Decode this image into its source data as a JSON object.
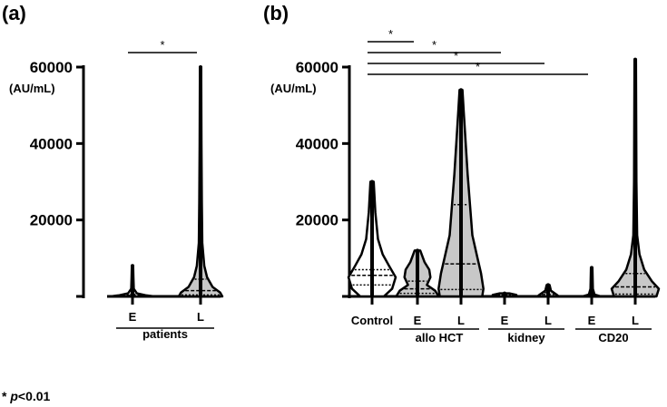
{
  "footnote": {
    "star": "*",
    "p": "p",
    "rest": "<0.01"
  },
  "chart_data": [
    {
      "type": "violin",
      "panel_label": "(a)",
      "ylabel": "(AU/mL)",
      "ylim": [
        0,
        60000
      ],
      "y_ticks": [
        0,
        20000,
        40000,
        60000
      ],
      "y_tick_labels": [
        "",
        "20000",
        "40000",
        "60000"
      ],
      "categories": [
        "E",
        "L"
      ],
      "group_labels": [
        {
          "label": "patients",
          "members": [
            "E",
            "L"
          ]
        }
      ],
      "colors": {
        "E": "#ffffff",
        "L": "#c8c8c8"
      },
      "series": [
        {
          "category": "E",
          "max": 8000,
          "median": 300,
          "q1": 100,
          "q3": 600,
          "profile": [
            [
              0,
              1.0
            ],
            [
              300,
              0.6
            ],
            [
              800,
              0.2
            ],
            [
              2000,
              0.06
            ],
            [
              5000,
              0.04
            ],
            [
              8000,
              0.03
            ]
          ]
        },
        {
          "category": "L",
          "max": 60000,
          "median": 1500,
          "q1": 400,
          "q3": 4500,
          "profile": [
            [
              0,
              1.0
            ],
            [
              1000,
              0.9
            ],
            [
              2500,
              0.55
            ],
            [
              5000,
              0.3
            ],
            [
              8000,
              0.17
            ],
            [
              14000,
              0.08
            ],
            [
              25000,
              0.06
            ],
            [
              40000,
              0.04
            ],
            [
              60000,
              0.03
            ]
          ]
        }
      ],
      "significance": [
        {
          "from": "E",
          "to": "L",
          "label": "*"
        }
      ]
    },
    {
      "type": "violin",
      "panel_label": "(b)",
      "ylabel": "(AU/mL)",
      "ylim": [
        0,
        60000
      ],
      "y_ticks": [
        0,
        20000,
        40000,
        60000
      ],
      "y_tick_labels": [
        "",
        "20000",
        "40000",
        "60000"
      ],
      "categories": [
        "Control",
        "E",
        "L",
        "E",
        "L",
        "E",
        "L"
      ],
      "group_labels": [
        {
          "label": "allo HCT",
          "members": [
            1,
            2
          ]
        },
        {
          "label": "kidney",
          "members": [
            3,
            4
          ]
        },
        {
          "label": "CD20",
          "members": [
            5,
            6
          ]
        }
      ],
      "colors": {
        "E": "#c8c8c8",
        "L": "#c8c8c8"
      },
      "series": [
        {
          "category": "Control",
          "max": 30000,
          "median": 5500,
          "q1": 3000,
          "q3": 7000,
          "profile": [
            [
              0,
              0.5
            ],
            [
              2000,
              0.85
            ],
            [
              5000,
              1.0
            ],
            [
              8000,
              0.72
            ],
            [
              11000,
              0.45
            ],
            [
              15000,
              0.25
            ],
            [
              22000,
              0.14
            ],
            [
              30000,
              0.07
            ]
          ]
        },
        {
          "category": "E",
          "group": "allo HCT",
          "max": 12000,
          "median": 2000,
          "q1": 800,
          "q3": 4000,
          "profile": [
            [
              0,
              0.9
            ],
            [
              1500,
              0.75
            ],
            [
              3000,
              0.4
            ],
            [
              5000,
              0.55
            ],
            [
              7000,
              0.5
            ],
            [
              9000,
              0.3
            ],
            [
              12000,
              0.12
            ]
          ]
        },
        {
          "category": "L",
          "group": "allo HCT",
          "max": 54000,
          "median": 8500,
          "q1": 1800,
          "q3": 24000,
          "profile": [
            [
              0,
              0.9
            ],
            [
              2000,
              0.95
            ],
            [
              6000,
              0.85
            ],
            [
              10000,
              0.7
            ],
            [
              16000,
              0.48
            ],
            [
              24000,
              0.38
            ],
            [
              32000,
              0.28
            ],
            [
              40000,
              0.2
            ],
            [
              48000,
              0.12
            ],
            [
              54000,
              0.06
            ]
          ]
        },
        {
          "category": "E",
          "group": "kidney",
          "max": 800,
          "median": 200,
          "q1": 50,
          "q3": 400,
          "profile": [
            [
              0,
              0.4
            ],
            [
              400,
              0.5
            ],
            [
              800,
              0.2
            ]
          ]
        },
        {
          "category": "L",
          "group": "kidney",
          "max": 3000,
          "median": 500,
          "q1": 100,
          "q3": 1000,
          "profile": [
            [
              0,
              0.45
            ],
            [
              500,
              0.35
            ],
            [
              1500,
              0.12
            ],
            [
              3000,
              0.06
            ]
          ]
        },
        {
          "category": "E",
          "group": "CD20",
          "max": 7500,
          "median": 200,
          "q1": 50,
          "q3": 500,
          "profile": [
            [
              0,
              0.38
            ],
            [
              500,
              0.12
            ],
            [
              2000,
              0.05
            ],
            [
              7500,
              0.03
            ]
          ]
        },
        {
          "category": "L",
          "group": "CD20",
          "max": 62000,
          "median": 2500,
          "q1": 600,
          "q3": 6000,
          "profile": [
            [
              0,
              0.9
            ],
            [
              2000,
              1.0
            ],
            [
              4000,
              0.7
            ],
            [
              7000,
              0.38
            ],
            [
              11000,
              0.18
            ],
            [
              16000,
              0.08
            ],
            [
              30000,
              0.05
            ],
            [
              62000,
              0.03
            ]
          ]
        }
      ],
      "significance": [
        {
          "from": "Control",
          "to": "allo HCT E",
          "label": "*"
        },
        {
          "from": "Control",
          "to": "kidney E",
          "label": "*"
        },
        {
          "from": "Control",
          "to": "kidney L",
          "label": "*"
        },
        {
          "from": "Control",
          "to": "CD20 E",
          "label": "*"
        }
      ]
    }
  ]
}
